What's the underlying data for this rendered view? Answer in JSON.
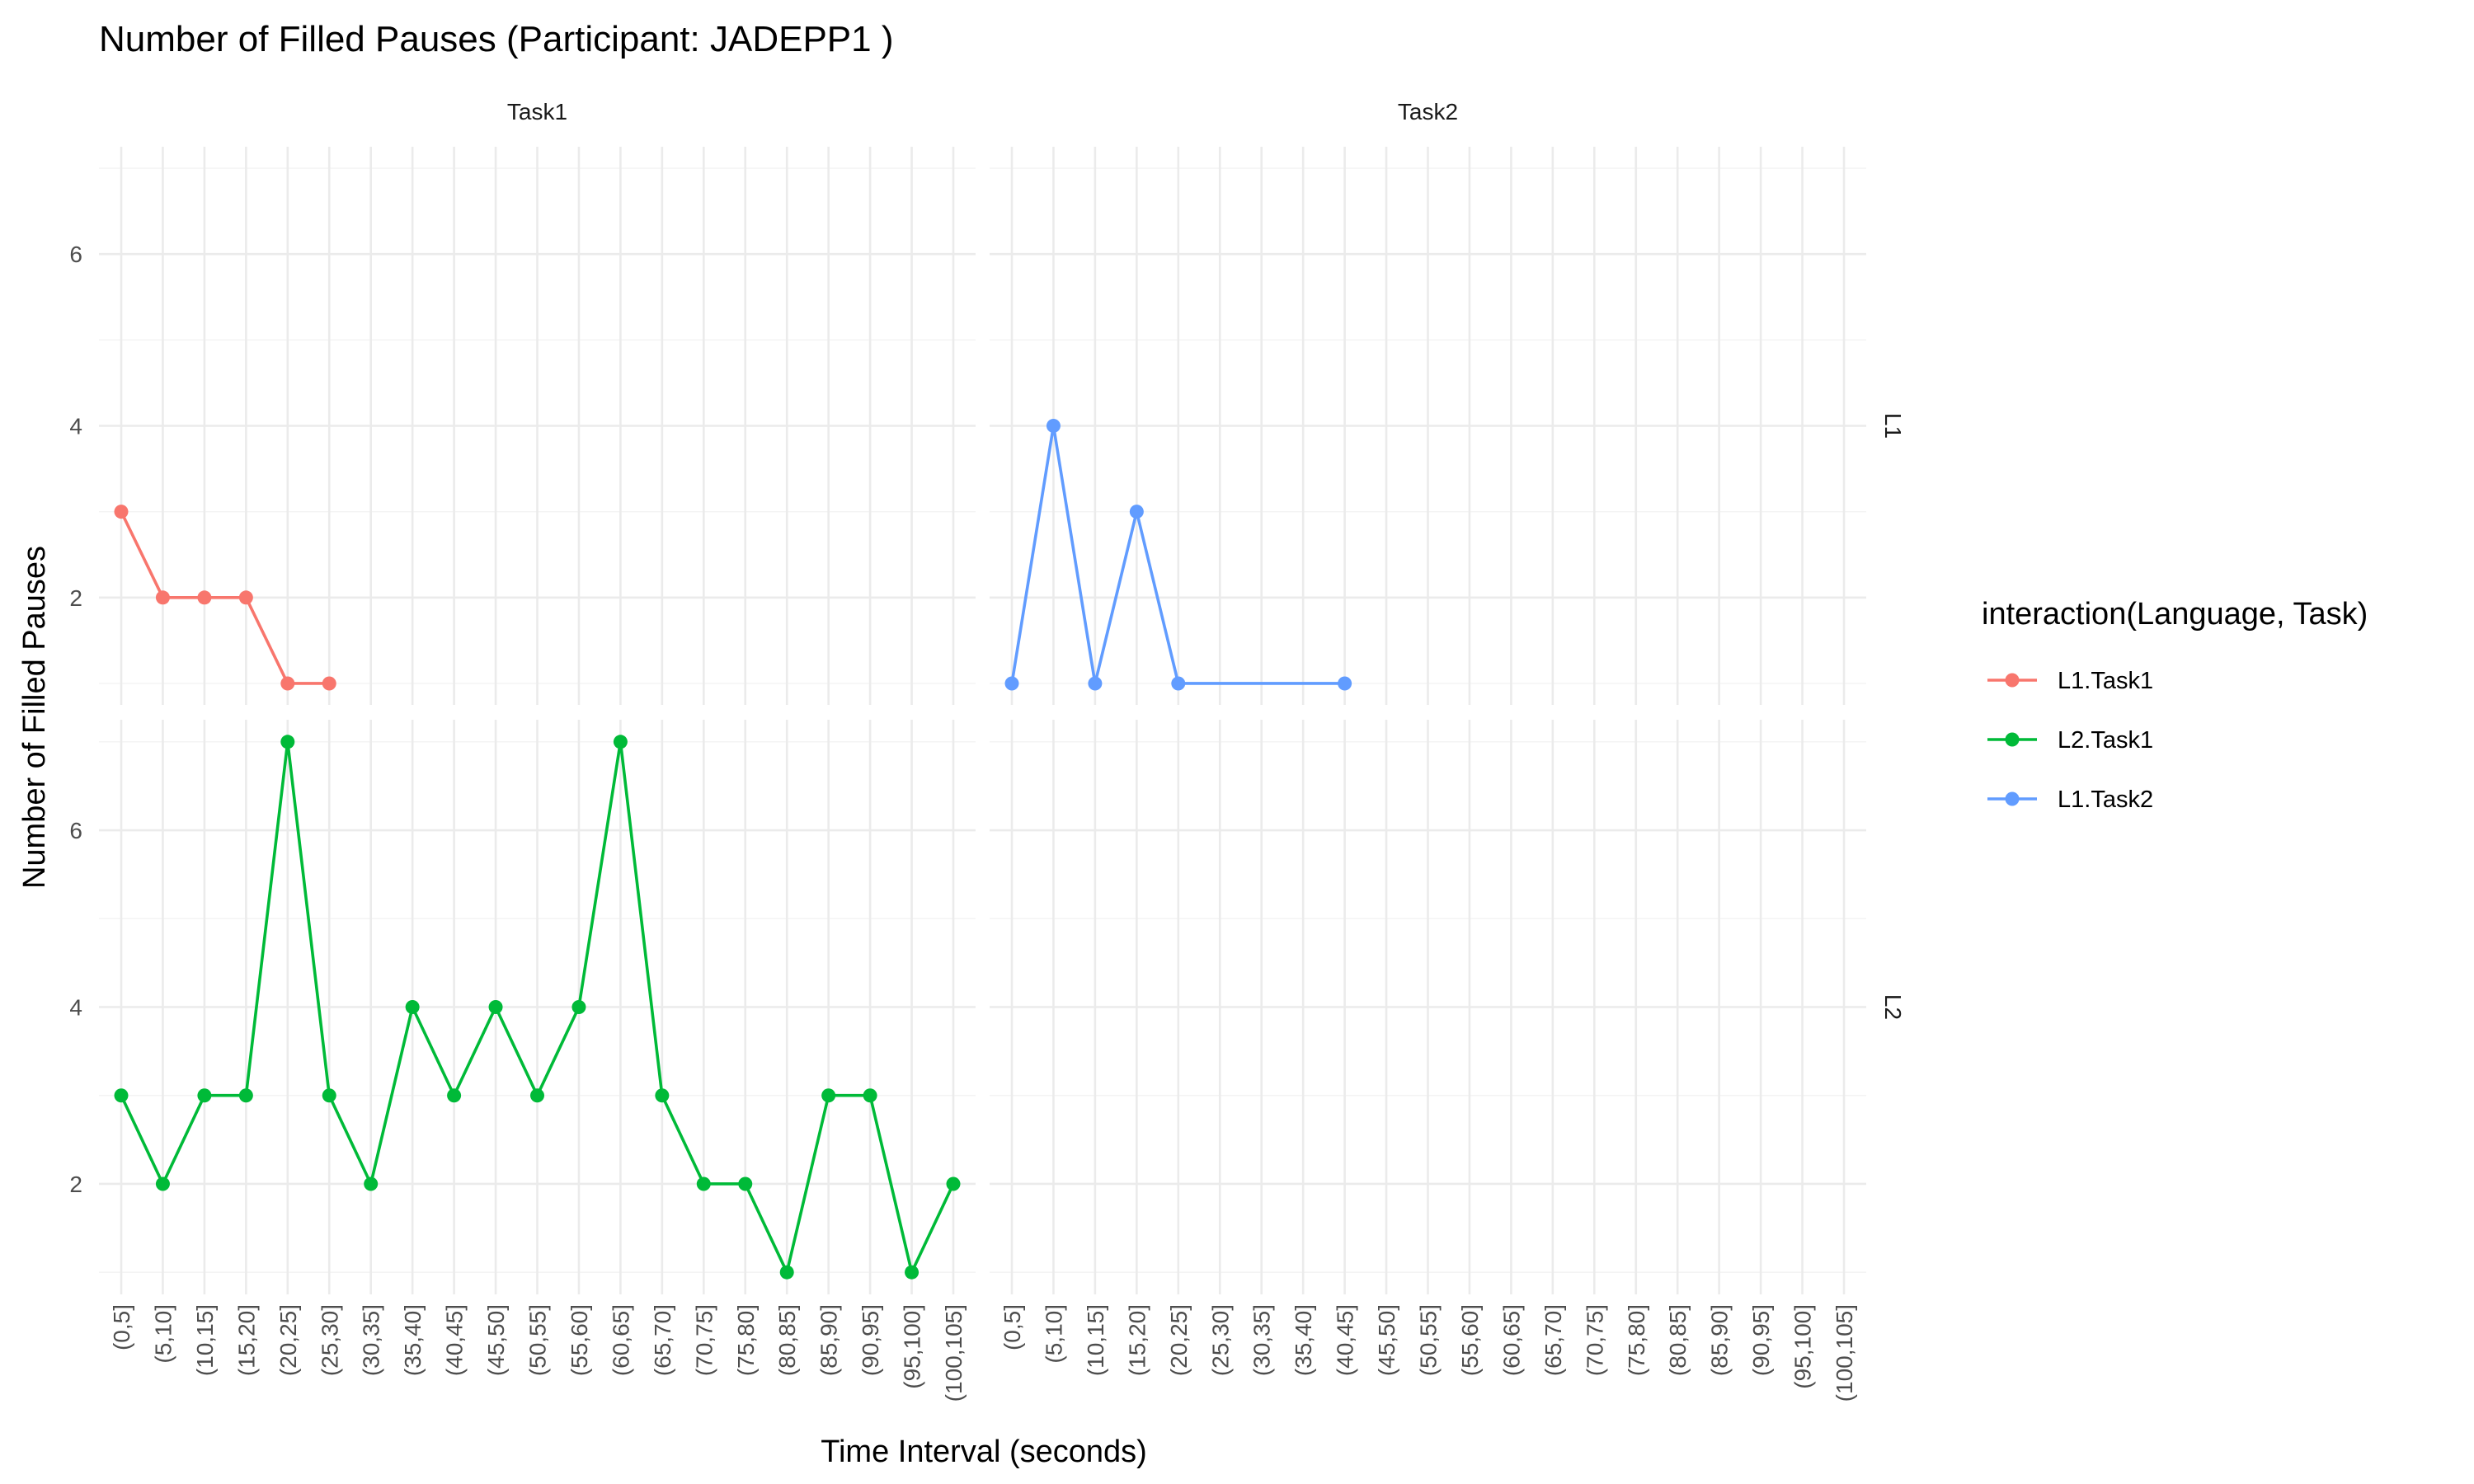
{
  "chart_data": {
    "type": "line",
    "title": "Number of Filled Pauses (Participant: JADEPP1 )",
    "xlabel": "Time Interval (seconds)",
    "ylabel": "Number of Filled Pauses",
    "categories": [
      "(0,5]",
      "(5,10]",
      "(10,15]",
      "(15,20]",
      "(20,25]",
      "(25,30]",
      "(30,35]",
      "(35,40]",
      "(40,45]",
      "(45,50]",
      "(50,55]",
      "(55,60]",
      "(60,65]",
      "(65,70]",
      "(70,75]",
      "(75,80]",
      "(80,85]",
      "(85,90]",
      "(90,95]",
      "(95,100]",
      "(100,105]"
    ],
    "y_ticks": [
      2,
      4,
      6
    ],
    "ylim": [
      0.75,
      7.25
    ],
    "facet_columns": [
      "Task1",
      "Task2"
    ],
    "facet_rows": [
      "L1",
      "L2"
    ],
    "legend": {
      "title": "interaction(Language, Task)",
      "placement": "right",
      "entries": [
        "L1.Task1",
        "L2.Task1",
        "L1.Task2"
      ]
    },
    "series": [
      {
        "name": "L1.Task1",
        "color": "#F8766D",
        "facet_col": "Task1",
        "facet_row": "L1",
        "x": [
          "(0,5]",
          "(5,10]",
          "(10,15]",
          "(15,20]",
          "(20,25]",
          "(25,30]"
        ],
        "values": [
          3,
          2,
          2,
          2,
          1,
          1
        ]
      },
      {
        "name": "L2.Task1",
        "color": "#00BA38",
        "facet_col": "Task1",
        "facet_row": "L2",
        "x": [
          "(0,5]",
          "(5,10]",
          "(10,15]",
          "(15,20]",
          "(20,25]",
          "(25,30]",
          "(30,35]",
          "(35,40]",
          "(40,45]",
          "(45,50]",
          "(50,55]",
          "(55,60]",
          "(60,65]",
          "(65,70]",
          "(70,75]",
          "(75,80]",
          "(80,85]",
          "(85,90]",
          "(90,95]",
          "(95,100]",
          "(100,105]"
        ],
        "values": [
          3,
          2,
          3,
          3,
          7,
          3,
          2,
          4,
          3,
          4,
          3,
          4,
          7,
          3,
          2,
          2,
          1,
          3,
          3,
          1,
          2
        ]
      },
      {
        "name": "L1.Task2",
        "color": "#619CFF",
        "facet_col": "Task2",
        "facet_row": "L1",
        "x": [
          "(0,5]",
          "(5,10]",
          "(10,15]",
          "(15,20]",
          "(20,25]",
          "(40,45]"
        ],
        "values": [
          1,
          4,
          1,
          3,
          1,
          1
        ]
      }
    ],
    "grid": true
  }
}
